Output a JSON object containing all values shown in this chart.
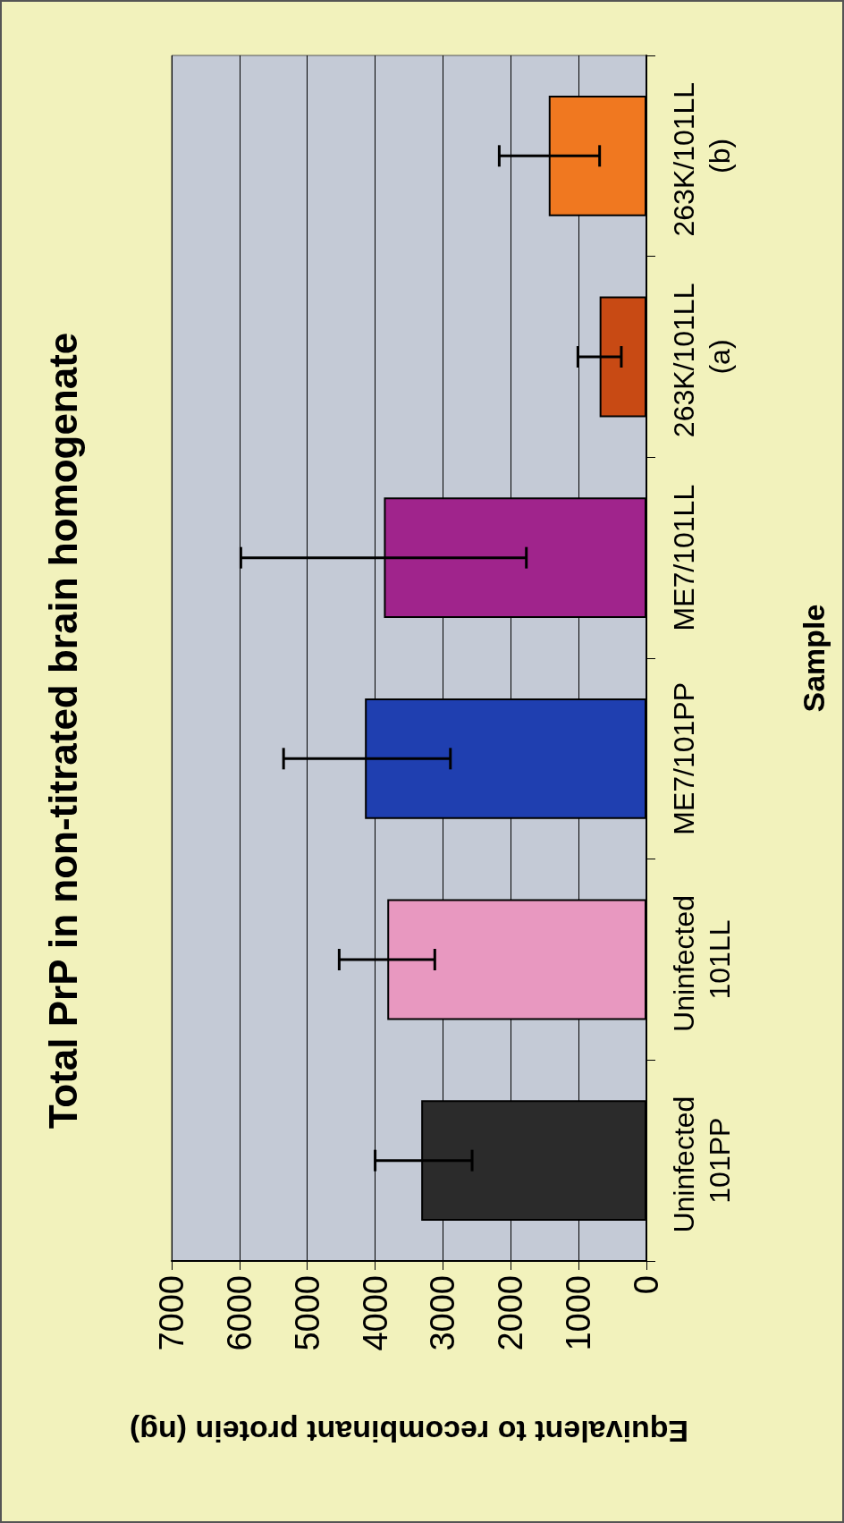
{
  "chart_data": {
    "type": "bar",
    "orientation": "horizontal",
    "title": "Total PrP in non-titrated brain homogenate",
    "xlabel": "Equivalent to recombinant protein (ng)",
    "ylabel": "Sample",
    "categories": [
      "263K/101LL (b)",
      "263K/101LL (a)",
      "ME7/101LL",
      "ME7/101PP",
      "Uninfected 101LL",
      "Uninfected 101PP"
    ],
    "values": [
      1440,
      690,
      3870,
      4150,
      3820,
      3320
    ],
    "colors": [
      "#f07820",
      "#c84a14",
      "#a0248c",
      "#1f3fb0",
      "#e898c0",
      "#2b2b2b"
    ],
    "errors": [
      [
        690,
        2170
      ],
      [
        370,
        1010
      ],
      [
        1770,
        5980
      ],
      [
        2890,
        5350
      ],
      [
        3120,
        4530
      ],
      [
        2570,
        4000
      ]
    ],
    "xlim": [
      7000,
      0
    ],
    "xticks": [
      0,
      1000,
      2000,
      3000,
      4000,
      5000,
      6000,
      7000
    ],
    "grid": "x"
  }
}
